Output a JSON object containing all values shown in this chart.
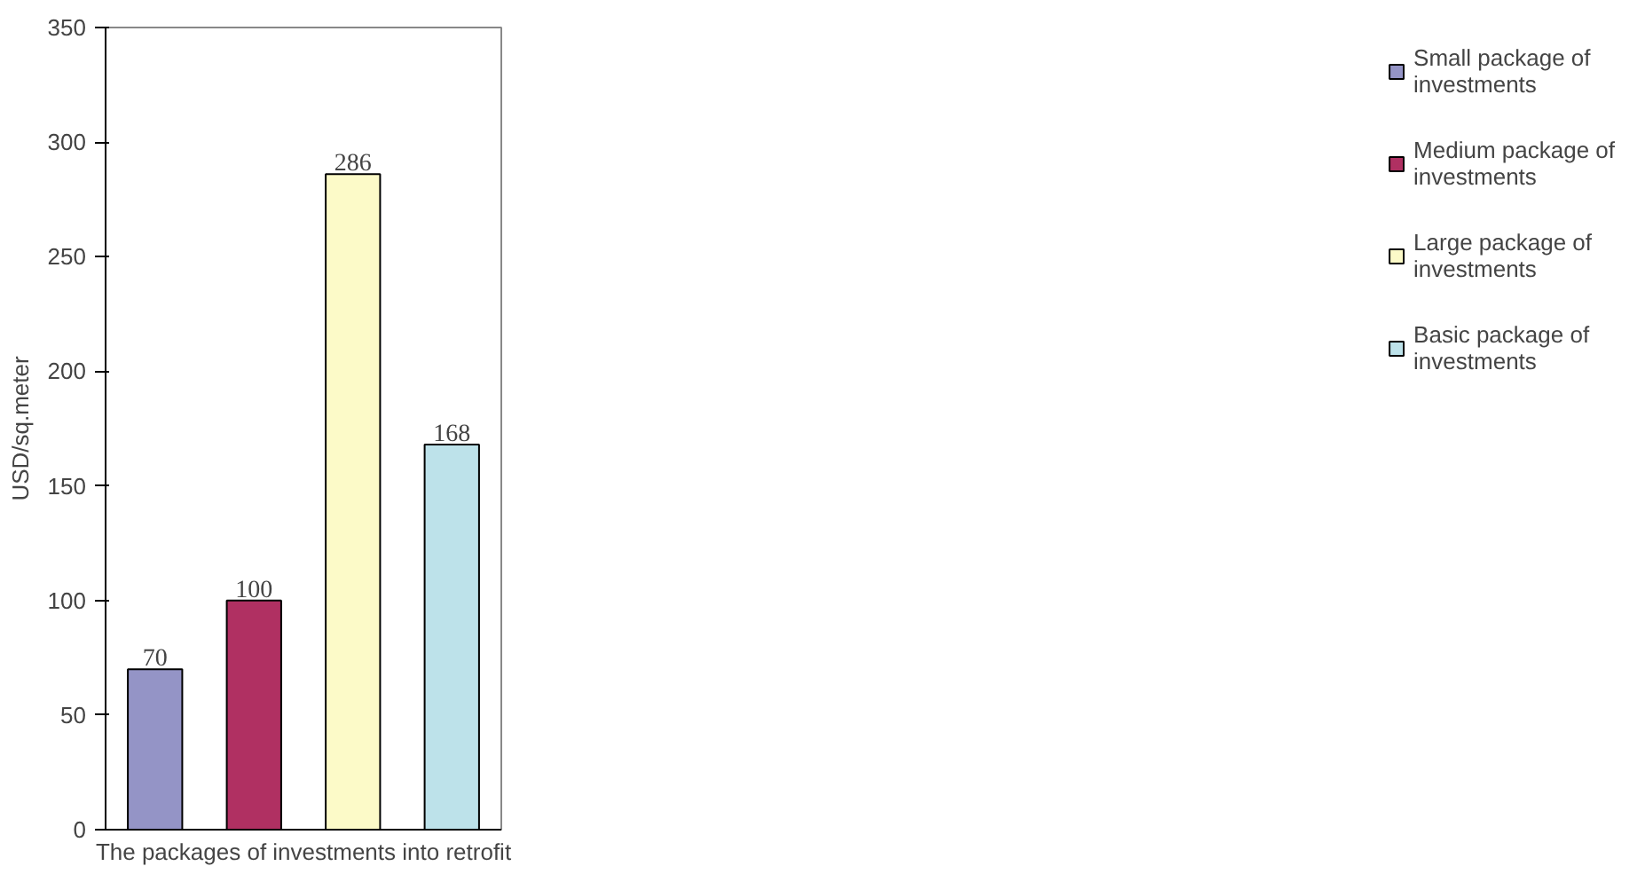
{
  "chart_data": {
    "type": "bar",
    "xlabel": "The packages of investments into retrofit",
    "ylabel": "USD/sq.meter",
    "categories": [
      null,
      null,
      null,
      null
    ],
    "series": [
      {
        "name": "Small package of investments",
        "color": "#9494c6",
        "values": [
          70,
          null,
          null,
          null
        ]
      },
      {
        "name": "Medium package of investments",
        "color": "#b03062",
        "values": [
          null,
          100,
          null,
          null
        ]
      },
      {
        "name": "Large package of investments",
        "color": "#fcfac8",
        "values": [
          null,
          null,
          286,
          null
        ]
      },
      {
        "name": "Basic package of investments",
        "color": "#bde2ea",
        "values": [
          null,
          null,
          null,
          168
        ]
      }
    ],
    "ylim": [
      0,
      350
    ],
    "yticks": [
      0,
      50,
      100,
      150,
      200,
      250,
      300,
      350
    ],
    "grid": false,
    "legend": "right",
    "data_labels": true
  }
}
